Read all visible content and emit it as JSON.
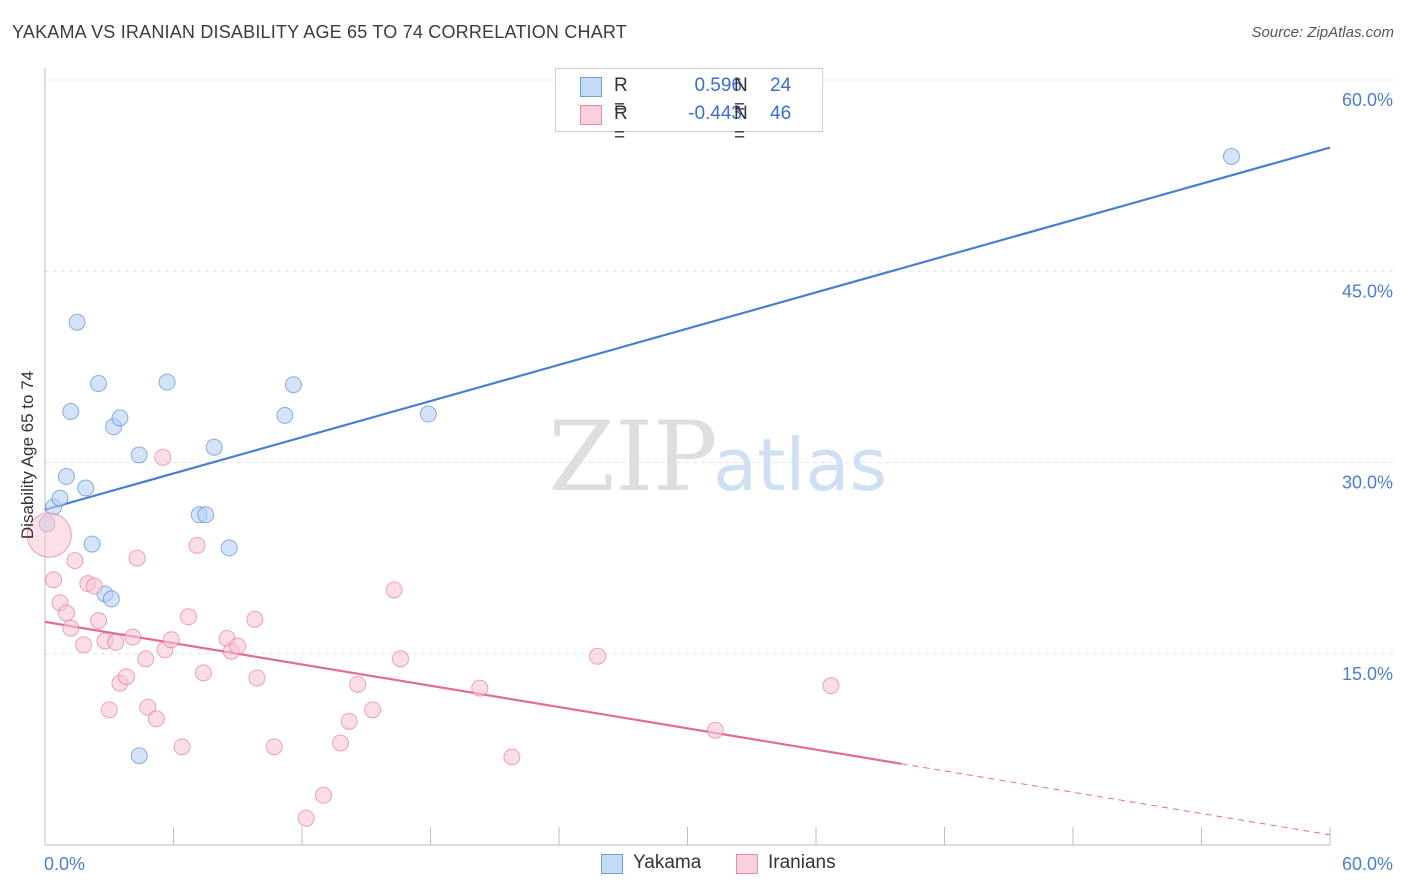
{
  "title": "YAKAMA VS IRANIAN DISABILITY AGE 65 TO 74 CORRELATION CHART",
  "source": "Source: ZipAtlas.com",
  "watermark": {
    "zip": "ZIP",
    "atlas": "atlas"
  },
  "legend": {
    "rows": [
      {
        "r_label": "R =",
        "r_value": "0.596",
        "n_label": "N =",
        "n_value": "24",
        "color": "#a8c8f0"
      },
      {
        "r_label": "R =",
        "r_value": "-0.443",
        "n_label": "N =",
        "n_value": "46",
        "color": "#f5b8cb"
      }
    ]
  },
  "bottom_legend": [
    {
      "label": "Yakama",
      "color": "#a8c8f0"
    },
    {
      "label": "Iranians",
      "color": "#f5b8cb"
    }
  ],
  "chart_data": {
    "type": "scatter",
    "title": "YAKAMA VS IRANIAN DISABILITY AGE 65 TO 74 CORRELATION CHART",
    "xlabel": "",
    "ylabel": "Disability Age 65 to 74",
    "xlim": [
      0,
      60
    ],
    "ylim": [
      0,
      60
    ],
    "x_tick_labels": [
      "0.0%",
      "60.0%"
    ],
    "y_ticks": [
      15,
      30,
      45,
      60
    ],
    "y_tick_labels": [
      "15.0%",
      "30.0%",
      "45.0%",
      "60.0%"
    ],
    "grid": true,
    "series": [
      {
        "name": "Yakama",
        "color": "#4a7fd0",
        "fill": "#b7d0f2",
        "points": [
          [
            0.1,
            25.2
          ],
          [
            0.4,
            26.5
          ],
          [
            0.7,
            27.2
          ],
          [
            1.0,
            28.9
          ],
          [
            1.2,
            34.0
          ],
          [
            1.5,
            41.0
          ],
          [
            1.9,
            28.0
          ],
          [
            2.2,
            23.6
          ],
          [
            2.5,
            36.2
          ],
          [
            2.8,
            19.7
          ],
          [
            3.1,
            19.3
          ],
          [
            3.2,
            32.8
          ],
          [
            3.5,
            33.5
          ],
          [
            4.4,
            30.6
          ],
          [
            5.7,
            36.3
          ],
          [
            7.2,
            25.9
          ],
          [
            7.5,
            25.9
          ],
          [
            7.9,
            31.2
          ],
          [
            8.6,
            23.3
          ],
          [
            11.2,
            33.7
          ],
          [
            11.6,
            36.1
          ],
          [
            17.9,
            33.8
          ],
          [
            55.4,
            54.0
          ],
          [
            4.4,
            7.0
          ]
        ],
        "trend": {
          "x": [
            0,
            60
          ],
          "y": [
            26.3,
            54.7
          ],
          "solid_to": 60
        }
      },
      {
        "name": "Iranians",
        "color": "#e06c98",
        "fill": "#f8c6d5",
        "points": [
          [
            0.2,
            24.3
          ],
          [
            0.4,
            20.8
          ],
          [
            0.7,
            19.0
          ],
          [
            1.0,
            18.2
          ],
          [
            1.2,
            17.0
          ],
          [
            1.4,
            22.3
          ],
          [
            1.8,
            15.7
          ],
          [
            2.0,
            20.5
          ],
          [
            2.3,
            20.3
          ],
          [
            2.5,
            17.6
          ],
          [
            2.8,
            16.0
          ],
          [
            3.0,
            10.6
          ],
          [
            3.3,
            15.9
          ],
          [
            3.5,
            12.7
          ],
          [
            3.8,
            13.2
          ],
          [
            4.1,
            16.3
          ],
          [
            4.3,
            22.5
          ],
          [
            4.7,
            14.6
          ],
          [
            4.8,
            10.8
          ],
          [
            5.2,
            9.9
          ],
          [
            5.5,
            30.4
          ],
          [
            5.6,
            15.3
          ],
          [
            5.9,
            16.1
          ],
          [
            6.4,
            7.7
          ],
          [
            6.7,
            17.9
          ],
          [
            7.1,
            23.5
          ],
          [
            7.4,
            13.5
          ],
          [
            8.5,
            16.2
          ],
          [
            8.7,
            15.2
          ],
          [
            9.0,
            15.6
          ],
          [
            9.8,
            17.7
          ],
          [
            9.9,
            13.1
          ],
          [
            10.7,
            7.7
          ],
          [
            12.2,
            2.1
          ],
          [
            13.0,
            3.9
          ],
          [
            13.8,
            8.0
          ],
          [
            14.2,
            9.7
          ],
          [
            14.6,
            12.6
          ],
          [
            15.3,
            10.6
          ],
          [
            16.3,
            20.0
          ],
          [
            16.6,
            14.6
          ],
          [
            20.3,
            12.3
          ],
          [
            21.8,
            6.9
          ],
          [
            25.8,
            14.8
          ],
          [
            31.3,
            9.0
          ],
          [
            36.7,
            12.5
          ]
        ],
        "trend": {
          "x": [
            0,
            60
          ],
          "y": [
            17.5,
            0.8
          ],
          "solid_to": 40
        }
      }
    ]
  }
}
